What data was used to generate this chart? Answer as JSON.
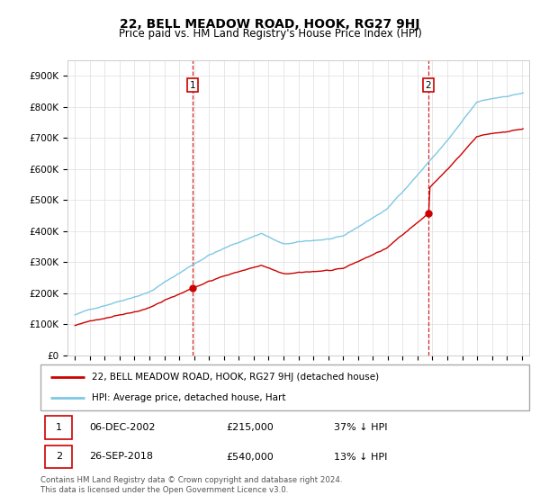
{
  "title": "22, BELL MEADOW ROAD, HOOK, RG27 9HJ",
  "subtitle": "Price paid vs. HM Land Registry's House Price Index (HPI)",
  "legend_line1": "22, BELL MEADOW ROAD, HOOK, RG27 9HJ (detached house)",
  "legend_line2": "HPI: Average price, detached house, Hart",
  "footnote": "Contains HM Land Registry data © Crown copyright and database right 2024.\nThis data is licensed under the Open Government Licence v3.0.",
  "event1_date": "06-DEC-2002",
  "event1_price": "£215,000",
  "event1_hpi": "37% ↓ HPI",
  "event1_year": 2002.92,
  "event1_prop_val": 215000,
  "event2_date": "26-SEP-2018",
  "event2_price": "£540,000",
  "event2_hpi": "13% ↓ HPI",
  "event2_year": 2018.73,
  "event2_prop_val": 540000,
  "property_color": "#cc0000",
  "hpi_color": "#7ec8e3",
  "vline_color": "#cc0000",
  "ylim_max": 950000,
  "yticks": [
    0,
    100000,
    200000,
    300000,
    400000,
    500000,
    600000,
    700000,
    800000,
    900000
  ],
  "ytick_labels": [
    "£0",
    "£100K",
    "£200K",
    "£300K",
    "£400K",
    "£500K",
    "£600K",
    "£700K",
    "£800K",
    "£900K"
  ],
  "xlim_min": 1994.5,
  "xlim_max": 2025.5,
  "fig_width": 6.0,
  "fig_height": 5.6,
  "dpi": 100
}
